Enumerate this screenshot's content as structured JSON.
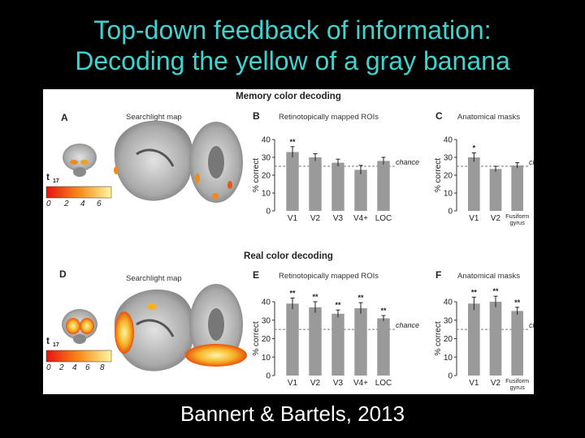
{
  "slide": {
    "title_line1": "Top-down feedback of information:",
    "title_line2": "Decoding the yellow of a gray banana",
    "citation": "Bannert & Bartels, 2013"
  },
  "figure": {
    "section_top": "Memory color decoding",
    "section_bottom": "Real color decoding",
    "panel_A": {
      "letter": "A",
      "label": "Searchlight map",
      "stat": "t",
      "stat_sub": "17",
      "scale": [
        "0",
        "2",
        "4",
        "6"
      ]
    },
    "panel_D": {
      "letter": "D",
      "label": "Searchlight map",
      "stat": "t",
      "stat_sub": "17",
      "scale": [
        "0",
        "2",
        "4",
        "6",
        "8"
      ]
    },
    "colors": {
      "bar": "#9a9a9a",
      "brain_bg": "#cfcfcf",
      "heat_low": "#e8130f",
      "heat_high": "#fff7a0"
    }
  },
  "chart_data": [
    {
      "panel": "B",
      "type": "bar",
      "subtitle": "Retinotopically mapped ROIs",
      "ylabel": "% correct",
      "ylim": [
        0,
        40
      ],
      "yticks": [
        "0",
        "10",
        "20",
        "30",
        "40"
      ],
      "chance": 25,
      "chance_label": "chance",
      "categories": [
        "V1",
        "V2",
        "V3",
        "V4+",
        "LOC"
      ],
      "values": [
        33,
        30,
        27,
        23,
        28
      ],
      "errors": [
        3,
        2,
        2,
        2.5,
        2
      ],
      "significance": [
        "**",
        "",
        "",
        "",
        ""
      ]
    },
    {
      "panel": "C",
      "type": "bar",
      "subtitle": "Anatomical masks",
      "ylabel": "% correct",
      "ylim": [
        0,
        40
      ],
      "yticks": [
        "0",
        "10",
        "20",
        "30",
        "40"
      ],
      "chance": 25,
      "chance_label": "chance",
      "categories": [
        "V1",
        "V2",
        "Fusiform gyrus"
      ],
      "values": [
        30,
        23.5,
        25.5
      ],
      "errors": [
        2.5,
        1.5,
        1.5
      ],
      "significance": [
        "*",
        "",
        ""
      ]
    },
    {
      "panel": "E",
      "type": "bar",
      "subtitle": "Retinotopically mapped ROIs",
      "ylabel": "% correct",
      "ylim": [
        0,
        40
      ],
      "yticks": [
        "0",
        "10",
        "20",
        "30",
        "40"
      ],
      "chance": 25,
      "chance_label": "chance",
      "categories": [
        "V1",
        "V2",
        "V3",
        "V4+",
        "LOC"
      ],
      "values": [
        39,
        37,
        33.5,
        36.5,
        31
      ],
      "errors": [
        3,
        3,
        2,
        3,
        1.5
      ],
      "significance": [
        "**",
        "**",
        "**",
        "**",
        "**"
      ]
    },
    {
      "panel": "F",
      "type": "bar",
      "subtitle": "Anatomical masks",
      "ylabel": "% correct",
      "ylim": [
        0,
        40
      ],
      "yticks": [
        "0",
        "10",
        "20",
        "30",
        "40"
      ],
      "chance": 25,
      "chance_label": "chance",
      "categories": [
        "V1",
        "V2",
        "Fusiform gyrus"
      ],
      "values": [
        39,
        40,
        35
      ],
      "errors": [
        3.5,
        3,
        2
      ],
      "significance": [
        "**",
        "**",
        "**"
      ]
    }
  ]
}
